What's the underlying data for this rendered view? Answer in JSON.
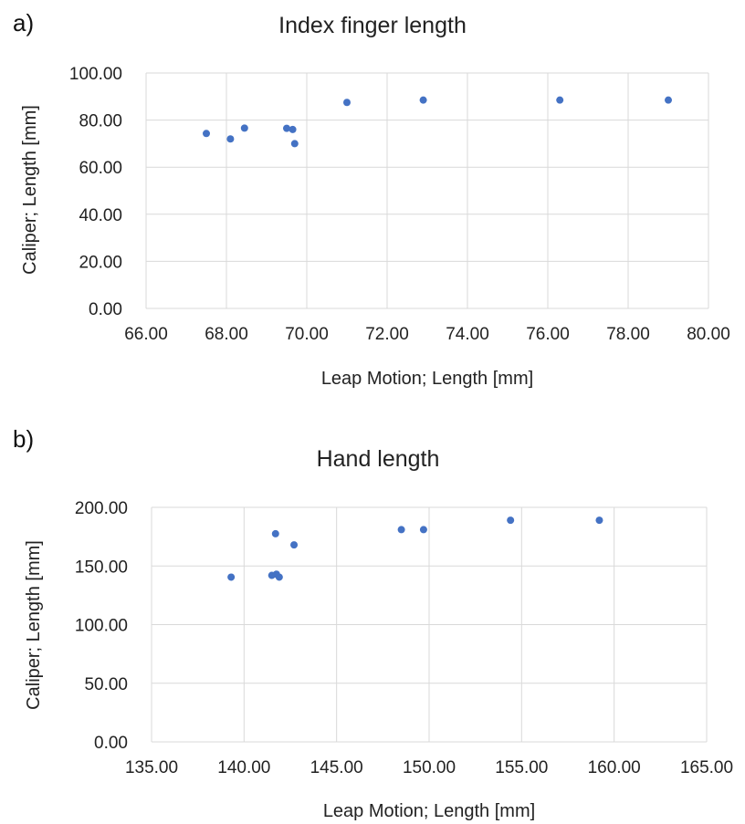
{
  "panels": {
    "a": "a)",
    "b": "b)"
  },
  "chart_data": [
    {
      "type": "scatter",
      "title": "Index finger length",
      "xlabel": "Leap Motion; Length [mm]",
      "ylabel": "Caliper; Length [mm]",
      "xlim": [
        66,
        80
      ],
      "ylim": [
        0,
        100
      ],
      "x_ticks": [
        "66.00",
        "68.00",
        "70.00",
        "72.00",
        "74.00",
        "76.00",
        "78.00",
        "80.00"
      ],
      "y_ticks": [
        "0.00",
        "20.00",
        "40.00",
        "60.00",
        "80.00",
        "100.00"
      ],
      "grid": true,
      "color": "#4472c4",
      "points": [
        {
          "x": 67.5,
          "y": 74.3
        },
        {
          "x": 68.1,
          "y": 72.0
        },
        {
          "x": 68.45,
          "y": 76.6
        },
        {
          "x": 69.5,
          "y": 76.5
        },
        {
          "x": 69.65,
          "y": 76.0
        },
        {
          "x": 69.7,
          "y": 70.0
        },
        {
          "x": 71.0,
          "y": 87.5
        },
        {
          "x": 72.9,
          "y": 88.5
        },
        {
          "x": 76.3,
          "y": 88.5
        },
        {
          "x": 79.0,
          "y": 88.5
        }
      ]
    },
    {
      "type": "scatter",
      "title": "Hand length",
      "xlabel": "Leap Motion; Length [mm]",
      "ylabel": "Caliper; Length [mm]",
      "xlim": [
        135,
        165
      ],
      "ylim": [
        0,
        200
      ],
      "x_ticks": [
        "135.00",
        "140.00",
        "145.00",
        "150.00",
        "155.00",
        "160.00",
        "165.00"
      ],
      "y_ticks": [
        "0.00",
        "50.00",
        "100.00",
        "150.00",
        "200.00"
      ],
      "grid": true,
      "color": "#4472c4",
      "points": [
        {
          "x": 139.3,
          "y": 140.5
        },
        {
          "x": 141.5,
          "y": 142.0
        },
        {
          "x": 141.7,
          "y": 177.5
        },
        {
          "x": 141.75,
          "y": 143.0
        },
        {
          "x": 141.9,
          "y": 140.5
        },
        {
          "x": 142.7,
          "y": 168.0
        },
        {
          "x": 148.5,
          "y": 181.0
        },
        {
          "x": 149.7,
          "y": 181.0
        },
        {
          "x": 154.4,
          "y": 189.0
        },
        {
          "x": 159.2,
          "y": 189.0
        }
      ]
    }
  ]
}
